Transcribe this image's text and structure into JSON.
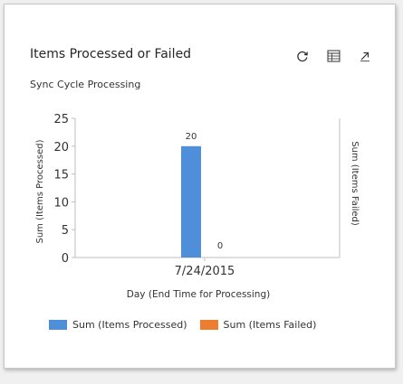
{
  "card": {
    "title": "Items Processed or Failed",
    "subtitle": "Sync Cycle Processing",
    "tools": [
      {
        "icon": "refresh-icon"
      },
      {
        "icon": "table-view-icon"
      },
      {
        "icon": "expand-icon"
      }
    ]
  },
  "colors": {
    "processed": "#4f8fd9",
    "failed": "#ed7d31"
  },
  "chart_data": {
    "type": "bar",
    "xlabel": "Day (End Time for Processing)",
    "ylabel": "Sum (Items Processed)",
    "y2label": "Sum (Items Failed)",
    "ylim": [
      0,
      25
    ],
    "yticks": [
      "0",
      "5",
      "10",
      "15",
      "20",
      "25"
    ],
    "categories": [
      "7/24/2015"
    ],
    "series": [
      {
        "name": "Sum (Items Processed)",
        "values": [
          20
        ],
        "labels": [
          "20"
        ]
      },
      {
        "name": "Sum (Items Failed)",
        "values": [
          0
        ],
        "labels": [
          "0"
        ]
      }
    ],
    "grid": false,
    "legend": "bottom-left"
  }
}
